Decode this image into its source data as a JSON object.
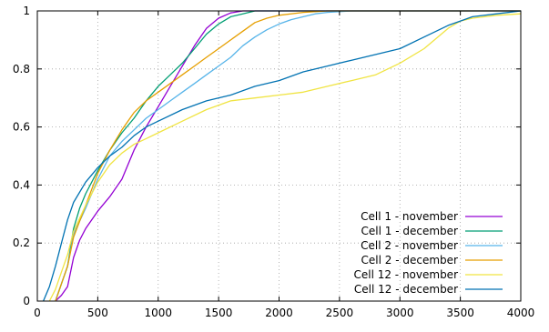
{
  "chart_data": {
    "type": "line",
    "title": "",
    "xlabel": "",
    "ylabel": "",
    "xlim": [
      0,
      4000
    ],
    "ylim": [
      0,
      1
    ],
    "x_ticks": [
      "0",
      "500",
      "1000",
      "1500",
      "2000",
      "2500",
      "3000",
      "3500",
      "4000"
    ],
    "y_ticks": [
      "0",
      "0.2",
      "0.4",
      "0.6",
      "0.8",
      "1"
    ],
    "grid": true,
    "legend_position": "bottom-right",
    "series": [
      {
        "name": "Cell 1 - november",
        "color": "#9400d3",
        "points": [
          [
            150,
            0
          ],
          [
            200,
            0.02
          ],
          [
            250,
            0.05
          ],
          [
            300,
            0.15
          ],
          [
            350,
            0.21
          ],
          [
            400,
            0.25
          ],
          [
            500,
            0.31
          ],
          [
            600,
            0.36
          ],
          [
            700,
            0.42
          ],
          [
            800,
            0.52
          ],
          [
            900,
            0.6
          ],
          [
            1000,
            0.67
          ],
          [
            1100,
            0.74
          ],
          [
            1200,
            0.81
          ],
          [
            1300,
            0.88
          ],
          [
            1400,
            0.94
          ],
          [
            1500,
            0.975
          ],
          [
            1600,
            0.993
          ],
          [
            1700,
            1.0
          ],
          [
            4000,
            1.0
          ]
        ]
      },
      {
        "name": "Cell 1 - december",
        "color": "#009e73",
        "points": [
          [
            150,
            0
          ],
          [
            200,
            0.06
          ],
          [
            250,
            0.12
          ],
          [
            300,
            0.25
          ],
          [
            350,
            0.32
          ],
          [
            400,
            0.37
          ],
          [
            500,
            0.45
          ],
          [
            600,
            0.52
          ],
          [
            700,
            0.58
          ],
          [
            800,
            0.63
          ],
          [
            900,
            0.69
          ],
          [
            1000,
            0.74
          ],
          [
            1100,
            0.78
          ],
          [
            1200,
            0.82
          ],
          [
            1300,
            0.87
          ],
          [
            1400,
            0.92
          ],
          [
            1500,
            0.955
          ],
          [
            1600,
            0.98
          ],
          [
            1700,
            0.99
          ],
          [
            1800,
            1.0
          ],
          [
            4000,
            1.0
          ]
        ]
      },
      {
        "name": "Cell 2 - november",
        "color": "#56b4e9",
        "points": [
          [
            150,
            0
          ],
          [
            200,
            0.06
          ],
          [
            250,
            0.12
          ],
          [
            300,
            0.23
          ],
          [
            400,
            0.32
          ],
          [
            500,
            0.42
          ],
          [
            600,
            0.5
          ],
          [
            700,
            0.55
          ],
          [
            800,
            0.59
          ],
          [
            900,
            0.63
          ],
          [
            1000,
            0.66
          ],
          [
            1100,
            0.69
          ],
          [
            1200,
            0.72
          ],
          [
            1300,
            0.75
          ],
          [
            1400,
            0.78
          ],
          [
            1500,
            0.81
          ],
          [
            1600,
            0.84
          ],
          [
            1700,
            0.88
          ],
          [
            1800,
            0.91
          ],
          [
            1900,
            0.935
          ],
          [
            2000,
            0.955
          ],
          [
            2100,
            0.97
          ],
          [
            2200,
            0.98
          ],
          [
            2300,
            0.99
          ],
          [
            2400,
            0.995
          ],
          [
            2600,
            1.0
          ],
          [
            4000,
            1.0
          ]
        ]
      },
      {
        "name": "Cell 2 - december",
        "color": "#e69f00",
        "points": [
          [
            150,
            0
          ],
          [
            200,
            0.06
          ],
          [
            250,
            0.12
          ],
          [
            300,
            0.22
          ],
          [
            400,
            0.33
          ],
          [
            500,
            0.44
          ],
          [
            600,
            0.52
          ],
          [
            700,
            0.59
          ],
          [
            800,
            0.65
          ],
          [
            900,
            0.69
          ],
          [
            1000,
            0.72
          ],
          [
            1100,
            0.75
          ],
          [
            1200,
            0.78
          ],
          [
            1300,
            0.81
          ],
          [
            1400,
            0.84
          ],
          [
            1500,
            0.87
          ],
          [
            1600,
            0.9
          ],
          [
            1700,
            0.93
          ],
          [
            1800,
            0.96
          ],
          [
            1900,
            0.975
          ],
          [
            2000,
            0.985
          ],
          [
            2200,
            0.995
          ],
          [
            2400,
            1.0
          ],
          [
            4000,
            1.0
          ]
        ]
      },
      {
        "name": "Cell 12 - november",
        "color": "#f0e442",
        "points": [
          [
            100,
            0
          ],
          [
            150,
            0.04
          ],
          [
            200,
            0.1
          ],
          [
            250,
            0.16
          ],
          [
            300,
            0.24
          ],
          [
            400,
            0.33
          ],
          [
            500,
            0.41
          ],
          [
            600,
            0.47
          ],
          [
            700,
            0.51
          ],
          [
            800,
            0.54
          ],
          [
            900,
            0.56
          ],
          [
            1000,
            0.58
          ],
          [
            1200,
            0.62
          ],
          [
            1400,
            0.66
          ],
          [
            1600,
            0.69
          ],
          [
            1800,
            0.7
          ],
          [
            2000,
            0.71
          ],
          [
            2200,
            0.72
          ],
          [
            2400,
            0.74
          ],
          [
            2600,
            0.76
          ],
          [
            2800,
            0.78
          ],
          [
            3000,
            0.82
          ],
          [
            3200,
            0.87
          ],
          [
            3400,
            0.94
          ],
          [
            3500,
            0.965
          ],
          [
            3600,
            0.975
          ],
          [
            3800,
            0.985
          ],
          [
            4000,
            0.99
          ]
        ]
      },
      {
        "name": "Cell 12 - december",
        "color": "#0072b2",
        "points": [
          [
            50,
            0
          ],
          [
            100,
            0.05
          ],
          [
            150,
            0.12
          ],
          [
            200,
            0.2
          ],
          [
            250,
            0.28
          ],
          [
            300,
            0.34
          ],
          [
            400,
            0.41
          ],
          [
            500,
            0.46
          ],
          [
            600,
            0.5
          ],
          [
            700,
            0.53
          ],
          [
            800,
            0.57
          ],
          [
            900,
            0.6
          ],
          [
            1000,
            0.62
          ],
          [
            1200,
            0.66
          ],
          [
            1400,
            0.69
          ],
          [
            1600,
            0.71
          ],
          [
            1800,
            0.74
          ],
          [
            2000,
            0.76
          ],
          [
            2200,
            0.79
          ],
          [
            2400,
            0.81
          ],
          [
            2600,
            0.83
          ],
          [
            2800,
            0.85
          ],
          [
            3000,
            0.87
          ],
          [
            3200,
            0.91
          ],
          [
            3400,
            0.95
          ],
          [
            3600,
            0.98
          ],
          [
            3800,
            0.99
          ],
          [
            4000,
            1.0
          ]
        ]
      }
    ]
  }
}
